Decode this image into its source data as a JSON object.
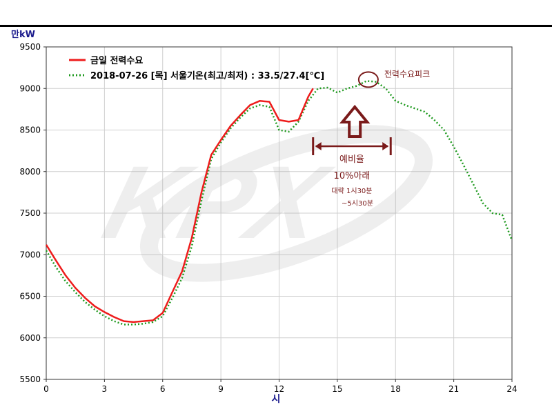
{
  "chart_data": {
    "type": "line",
    "y_unit_label": "만kW",
    "x_axis_label": "시",
    "xlim": [
      0,
      24
    ],
    "ylim": [
      5500,
      9500
    ],
    "x_ticks": [
      0,
      3,
      6,
      9,
      12,
      15,
      18,
      21,
      24
    ],
    "y_ticks": [
      5500,
      6000,
      6500,
      7000,
      7500,
      8000,
      8500,
      9000,
      9500
    ],
    "grid": true,
    "legend_position": "top-left",
    "watermark": "KPX",
    "colors": {
      "today": "#ee1c1c",
      "reference": "#1f9a1f",
      "annotation": "#7a1a1a"
    },
    "series": [
      {
        "name": "금일 전력수요",
        "style": "solid",
        "x": [
          0,
          0.5,
          1,
          1.5,
          2,
          2.5,
          3,
          3.5,
          4,
          4.5,
          5,
          5.5,
          6,
          6.5,
          7,
          7.5,
          8,
          8.5,
          9,
          9.5,
          10,
          10.5,
          11,
          11.5,
          12,
          12.5,
          13,
          13.5,
          13.75
        ],
        "values": [
          7120,
          6930,
          6750,
          6600,
          6480,
          6380,
          6310,
          6250,
          6200,
          6190,
          6200,
          6210,
          6300,
          6550,
          6800,
          7200,
          7750,
          8200,
          8380,
          8550,
          8680,
          8800,
          8850,
          8840,
          8620,
          8600,
          8620,
          8900,
          9000
        ]
      },
      {
        "name": "2018-07-26 [목] 서울기온(최고/최저) : 33.5/27.4[℃]",
        "style": "dotted",
        "x": [
          0,
          0.5,
          1,
          1.5,
          2,
          2.5,
          3,
          3.5,
          4,
          4.5,
          5,
          5.5,
          6,
          6.5,
          7,
          7.5,
          8,
          8.5,
          9,
          9.5,
          10,
          10.5,
          11,
          11.5,
          12,
          12.5,
          13,
          13.5,
          14,
          14.5,
          15,
          15.5,
          16,
          16.5,
          17,
          17.5,
          18,
          18.5,
          19,
          19.5,
          20,
          20.5,
          21,
          21.5,
          22,
          22.5,
          23,
          23.5,
          24
        ],
        "values": [
          7050,
          6850,
          6680,
          6550,
          6430,
          6340,
          6260,
          6200,
          6160,
          6160,
          6170,
          6190,
          6260,
          6480,
          6720,
          7100,
          7650,
          8150,
          8350,
          8520,
          8650,
          8760,
          8800,
          8780,
          8500,
          8480,
          8600,
          8850,
          9000,
          9010,
          8950,
          9000,
          9030,
          9090,
          9080,
          9000,
          8850,
          8800,
          8760,
          8720,
          8620,
          8500,
          8300,
          8080,
          7850,
          7620,
          7500,
          7480,
          7170
        ]
      }
    ],
    "annotations": {
      "peak_label": "전력수요피크",
      "range_label": "예비율",
      "range_value": "10%아래",
      "range_from": "대략 1시30분",
      "range_to": "~5시30분",
      "range_x": [
        13.75,
        17.75
      ],
      "peak_point": {
        "x": 16.6,
        "y": 9090
      },
      "arrow_x": 15.9
    }
  }
}
